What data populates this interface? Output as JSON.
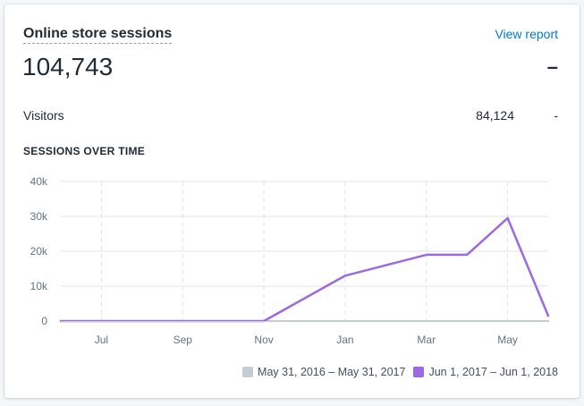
{
  "card": {
    "title": "Online store sessions",
    "view_report": "View report",
    "total_sessions": "104,743",
    "total_delta": "–",
    "visitors_label": "Visitors",
    "visitors_value": "84,124",
    "visitors_delta": "-",
    "section_title": "SESSIONS OVER TIME"
  },
  "colors": {
    "current": "#9c6ade",
    "previous": "#c4cdd5",
    "link": "#007ace"
  },
  "chart_data": {
    "type": "line",
    "y_ticks": [
      "0",
      "10k",
      "20k",
      "30k",
      "40k"
    ],
    "ylim": [
      0,
      40000
    ],
    "x_ticks": [
      "Jul",
      "Sep",
      "Nov",
      "Jan",
      "Mar",
      "May"
    ],
    "grid": true,
    "legend_placement": "bottom-right",
    "series": [
      {
        "name": "May 31, 2016 – May 31, 2017",
        "color": "#c4cdd5",
        "x": [
          "2016-06-01",
          "2016-07-01",
          "2016-09-01",
          "2016-11-01",
          "2017-01-01",
          "2017-03-01",
          "2017-04-01",
          "2017-05-01",
          "2017-06-01"
        ],
        "values": [
          0,
          0,
          0,
          0,
          0,
          0,
          0,
          0,
          0
        ]
      },
      {
        "name": "Jun 1, 2017 – Jun 1, 2018",
        "color": "#9c6ade",
        "x": [
          "2017-06-01",
          "2017-07-01",
          "2017-09-01",
          "2017-11-01",
          "2018-01-01",
          "2018-03-01",
          "2018-04-01",
          "2018-05-01",
          "2018-06-01"
        ],
        "values": [
          0,
          0,
          0,
          0,
          13000,
          19000,
          19000,
          29500,
          1500
        ]
      }
    ]
  }
}
